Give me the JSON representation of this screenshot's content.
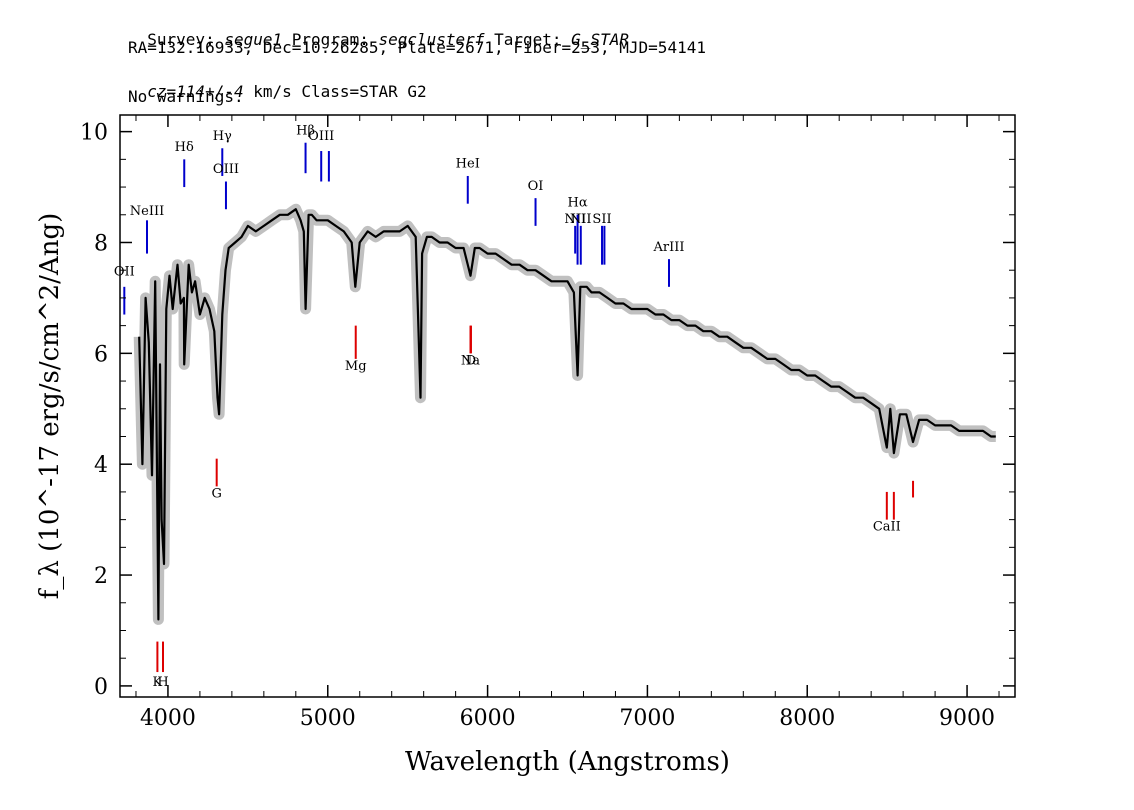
{
  "header": {
    "survey_label": "Survey:",
    "survey": "segue1",
    "program_label": "Program:",
    "program": "segclusterf",
    "target_label": "Target:",
    "target": "G_STAR",
    "line2": "RA=132.16933, Dec=10.26285, Plate=2671, Fiber=253, MJD=54141",
    "cz": "cz=114+/-4",
    "line3_rest": " km/s Class=STAR G2",
    "line4": "No warnings."
  },
  "colors": {
    "flux": "#000000",
    "error_band": "#c0c0c0",
    "emission_line": "#0000cc",
    "absorption_line": "#dd0000",
    "axis": "#000000"
  },
  "chart_data": {
    "type": "line",
    "xlabel": "Wavelength (Angstroms)",
    "ylabel": "f_λ (10^-17 erg/s/cm^2/Ang)",
    "xlim": [
      3700,
      9300
    ],
    "ylim": [
      -0.2,
      10.3
    ],
    "x_ticks": [
      4000,
      5000,
      6000,
      7000,
      8000,
      9000
    ],
    "x_tick_labels": [
      "4000",
      "5000",
      "6000",
      "7000",
      "8000",
      "9000"
    ],
    "y_ticks": [
      0,
      2,
      4,
      6,
      8,
      10
    ],
    "y_tick_labels": [
      "0",
      "2",
      "4",
      "6",
      "8",
      "10"
    ],
    "series": [
      {
        "x": [
          3820,
          3840,
          3860,
          3880,
          3900,
          3920,
          3940,
          3950,
          3960,
          3975,
          3990,
          4010,
          4030,
          4060,
          4080,
          4100,
          4102,
          4130,
          4150,
          4170,
          4200,
          4230,
          4260,
          4290,
          4310,
          4320,
          4340,
          4360,
          4380,
          4420,
          4460,
          4500,
          4550,
          4600,
          4650,
          4700,
          4750,
          4800,
          4830,
          4850,
          4861,
          4880,
          4900,
          4930,
          4960,
          5000,
          5050,
          5100,
          5150,
          5172,
          5200,
          5250,
          5300,
          5350,
          5400,
          5450,
          5500,
          5550,
          5580,
          5590,
          5620,
          5650,
          5700,
          5750,
          5800,
          5850,
          5893,
          5920,
          5950,
          6000,
          6050,
          6100,
          6150,
          6200,
          6250,
          6300,
          6350,
          6400,
          6450,
          6500,
          6540,
          6563,
          6580,
          6620,
          6650,
          6700,
          6750,
          6800,
          6850,
          6900,
          6950,
          7000,
          7050,
          7100,
          7150,
          7200,
          7250,
          7300,
          7350,
          7400,
          7450,
          7500,
          7550,
          7600,
          7650,
          7700,
          7750,
          7800,
          7850,
          7900,
          7950,
          8000,
          8050,
          8100,
          8150,
          8200,
          8250,
          8300,
          8350,
          8400,
          8450,
          8498,
          8520,
          8542,
          8580,
          8620,
          8662,
          8700,
          8750,
          8800,
          8850,
          8900,
          8950,
          9000,
          9050,
          9100,
          9150,
          9180
        ],
        "y": [
          6.3,
          4.0,
          7.0,
          6.2,
          3.8,
          7.3,
          1.2,
          5.8,
          3.0,
          2.2,
          6.8,
          7.4,
          6.8,
          7.6,
          6.9,
          7.0,
          5.8,
          7.6,
          7.1,
          7.3,
          6.7,
          7.0,
          6.8,
          6.4,
          5.2,
          4.9,
          6.7,
          7.5,
          7.9,
          8.0,
          8.1,
          8.3,
          8.2,
          8.3,
          8.4,
          8.5,
          8.5,
          8.6,
          8.4,
          8.2,
          6.8,
          8.5,
          8.5,
          8.4,
          8.4,
          8.4,
          8.3,
          8.2,
          8.0,
          7.2,
          8.0,
          8.2,
          8.1,
          8.2,
          8.2,
          8.2,
          8.3,
          8.1,
          5.2,
          7.8,
          8.1,
          8.1,
          8.0,
          8.0,
          7.9,
          7.9,
          7.4,
          7.9,
          7.9,
          7.8,
          7.8,
          7.7,
          7.6,
          7.6,
          7.5,
          7.5,
          7.4,
          7.3,
          7.3,
          7.3,
          7.1,
          5.6,
          7.2,
          7.2,
          7.1,
          7.1,
          7.0,
          6.9,
          6.9,
          6.8,
          6.8,
          6.8,
          6.7,
          6.7,
          6.6,
          6.6,
          6.5,
          6.5,
          6.4,
          6.4,
          6.3,
          6.3,
          6.2,
          6.1,
          6.1,
          6.0,
          5.9,
          5.9,
          5.8,
          5.7,
          5.7,
          5.6,
          5.6,
          5.5,
          5.4,
          5.4,
          5.3,
          5.2,
          5.2,
          5.1,
          5.0,
          4.3,
          5.0,
          4.2,
          4.9,
          4.9,
          4.4,
          4.8,
          4.8,
          4.7,
          4.7,
          4.7,
          4.6,
          4.6,
          4.6,
          4.6,
          4.5,
          4.5
        ]
      }
    ],
    "emission_lines": [
      {
        "label": "OII",
        "x": 3727,
        "y_bottom": 6.7,
        "y_top": 7.2,
        "label_y": 7.4
      },
      {
        "label": "NeIII",
        "x": 3869,
        "y_bottom": 7.8,
        "y_top": 8.4,
        "label_y": 8.5
      },
      {
        "label": "Hδ",
        "x": 4102,
        "y_bottom": 9.0,
        "y_top": 9.5,
        "label_y": 9.65
      },
      {
        "label": "Hγ",
        "x": 4340,
        "y_bottom": 9.2,
        "y_top": 9.7,
        "label_y": 9.85
      },
      {
        "label": "OIII",
        "x": 4363,
        "y_bottom": 8.6,
        "y_top": 9.1,
        "label_y": 9.25
      },
      {
        "label": "Hβ",
        "x": 4861,
        "y_bottom": 9.25,
        "y_top": 9.8,
        "label_y": 9.95
      },
      {
        "label": "OIII",
        "x": 4959,
        "y_bottom": 9.1,
        "y_top": 9.65,
        "label_y": 9.85
      },
      {
        "label": "",
        "x": 5007,
        "y_bottom": 9.1,
        "y_top": 9.65,
        "label_y": 9.85
      },
      {
        "label": "HeI",
        "x": 5876,
        "y_bottom": 8.7,
        "y_top": 9.2,
        "label_y": 9.35
      },
      {
        "label": "OI",
        "x": 6300,
        "y_bottom": 8.3,
        "y_top": 8.8,
        "label_y": 8.95
      },
      {
        "label": "NII",
        "x": 6548,
        "y_bottom": 7.8,
        "y_top": 8.3,
        "label_y": 8.35
      },
      {
        "label": "Hα",
        "x": 6563,
        "y_bottom": 7.6,
        "y_top": 8.5,
        "label_y": 8.65
      },
      {
        "label": "NII",
        "x": 6583,
        "y_bottom": 7.6,
        "y_top": 8.3,
        "label_y": 8.35
      },
      {
        "label": "SII",
        "x": 6716,
        "y_bottom": 7.6,
        "y_top": 8.3,
        "label_y": 8.35
      },
      {
        "label": "",
        "x": 6731,
        "y_bottom": 7.6,
        "y_top": 8.3,
        "label_y": 8.35
      },
      {
        "label": "ArIII",
        "x": 7135,
        "y_bottom": 7.2,
        "y_top": 7.7,
        "label_y": 7.85
      }
    ],
    "absorption_lines": [
      {
        "label": "K",
        "x": 3934,
        "y_bottom": 0.25,
        "y_top": 0.8,
        "label_y": 0.0
      },
      {
        "label": "H",
        "x": 3969,
        "y_bottom": 0.25,
        "y_top": 0.8,
        "label_y": 0.0
      },
      {
        "label": "G",
        "x": 4305,
        "y_bottom": 3.6,
        "y_top": 4.1,
        "label_y": 3.4
      },
      {
        "label": "Mg",
        "x": 5175,
        "y_bottom": 5.9,
        "y_top": 6.5,
        "label_y": 5.7
      },
      {
        "label": "Na",
        "x": 5893,
        "y_bottom": 6.0,
        "y_top": 6.5,
        "label_y": 5.8
      },
      {
        "label": "D",
        "x": 5896,
        "y_bottom": 6.0,
        "y_top": 6.5,
        "label_y": 5.8
      },
      {
        "label": "CaII",
        "x": 8498,
        "y_bottom": 3.0,
        "y_top": 3.5,
        "label_y": 2.8
      },
      {
        "label": "",
        "x": 8542,
        "y_bottom": 3.0,
        "y_top": 3.5,
        "label_y": 2.8
      },
      {
        "label": "",
        "x": 8662,
        "y_bottom": 3.4,
        "y_top": 3.7,
        "label_y": 2.8
      }
    ],
    "grid": false,
    "legend": "none"
  }
}
